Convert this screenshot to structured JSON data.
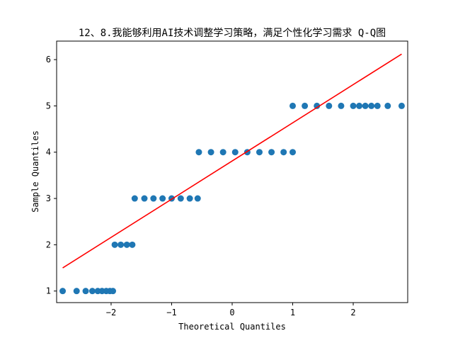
{
  "chart_data": {
    "type": "scatter",
    "title": "12、8.我能够利用AI技术调整学习策略，满足个性化学习需求 Q-Q图",
    "xlabel": "Theoretical Quantiles",
    "ylabel": "Sample Quantiles",
    "xlim": [
      -2.9,
      2.9
    ],
    "ylim": [
      0.75,
      6.4
    ],
    "xticks": [
      -2,
      -1,
      0,
      1,
      2
    ],
    "xtick_labels": [
      "−2",
      "−1",
      "0",
      "1",
      "2"
    ],
    "yticks": [
      1,
      2,
      3,
      4,
      5,
      6
    ],
    "ytick_labels": [
      "1",
      "2",
      "3",
      "4",
      "5",
      "6"
    ],
    "grid": false,
    "point_color": "#1f77b4",
    "line_color": "#ff0000",
    "series": [
      {
        "kind": "points",
        "x": [
          -2.8,
          -2.57,
          -2.42,
          -2.31,
          -2.22,
          -2.15,
          -2.08,
          -2.02,
          -1.97,
          -1.94,
          -1.84,
          -1.74,
          -1.65,
          -1.61,
          -1.45,
          -1.3,
          -1.15,
          -1.0,
          -0.85,
          -0.7,
          -0.57,
          -0.55,
          -0.35,
          -0.15,
          0.05,
          0.25,
          0.45,
          0.65,
          0.85,
          1.0,
          1.0,
          1.2,
          1.4,
          1.6,
          1.8,
          2.0,
          2.1,
          2.2,
          2.3,
          2.4,
          2.57,
          2.8
        ],
        "y": [
          1,
          1,
          1,
          1,
          1,
          1,
          1,
          1,
          1,
          2,
          2,
          2,
          2,
          3,
          3,
          3,
          3,
          3,
          3,
          3,
          3,
          4,
          4,
          4,
          4,
          4,
          4,
          4,
          4,
          4,
          5,
          5,
          5,
          5,
          5,
          5,
          5,
          5,
          5,
          5,
          5,
          5
        ]
      },
      {
        "kind": "line",
        "x": [
          -2.8,
          2.8
        ],
        "y": [
          1.5,
          6.12
        ]
      }
    ]
  }
}
